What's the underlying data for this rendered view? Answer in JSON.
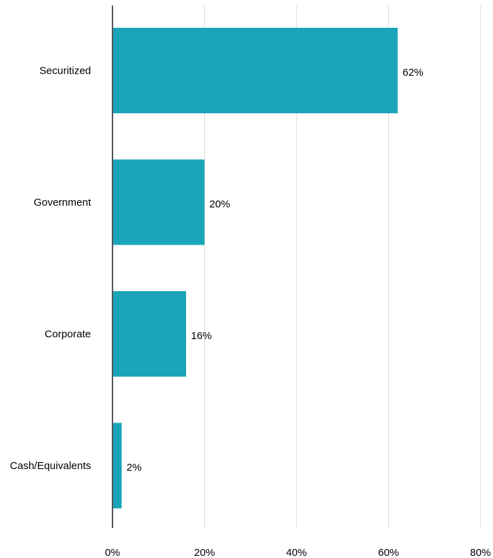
{
  "chart_data": {
    "type": "bar",
    "orientation": "horizontal",
    "title": "",
    "xlabel": "",
    "ylabel": "",
    "categories": [
      "Securitized",
      "Government",
      "Corporate",
      "Cash/Equivalents"
    ],
    "values": [
      62,
      20,
      16,
      2
    ],
    "value_labels": [
      "62%",
      "20%",
      "16%",
      "2%"
    ],
    "xlim": [
      0,
      80
    ],
    "x_ticks": [
      0,
      20,
      40,
      60,
      80
    ],
    "x_tick_labels": [
      "0%",
      "20%",
      "40%",
      "60%",
      "80%"
    ],
    "grid": "vertical",
    "legend": "none",
    "bar_color": "#1aa5b8",
    "grid_color": "#d9d9d9",
    "axis_color": "#555555"
  }
}
